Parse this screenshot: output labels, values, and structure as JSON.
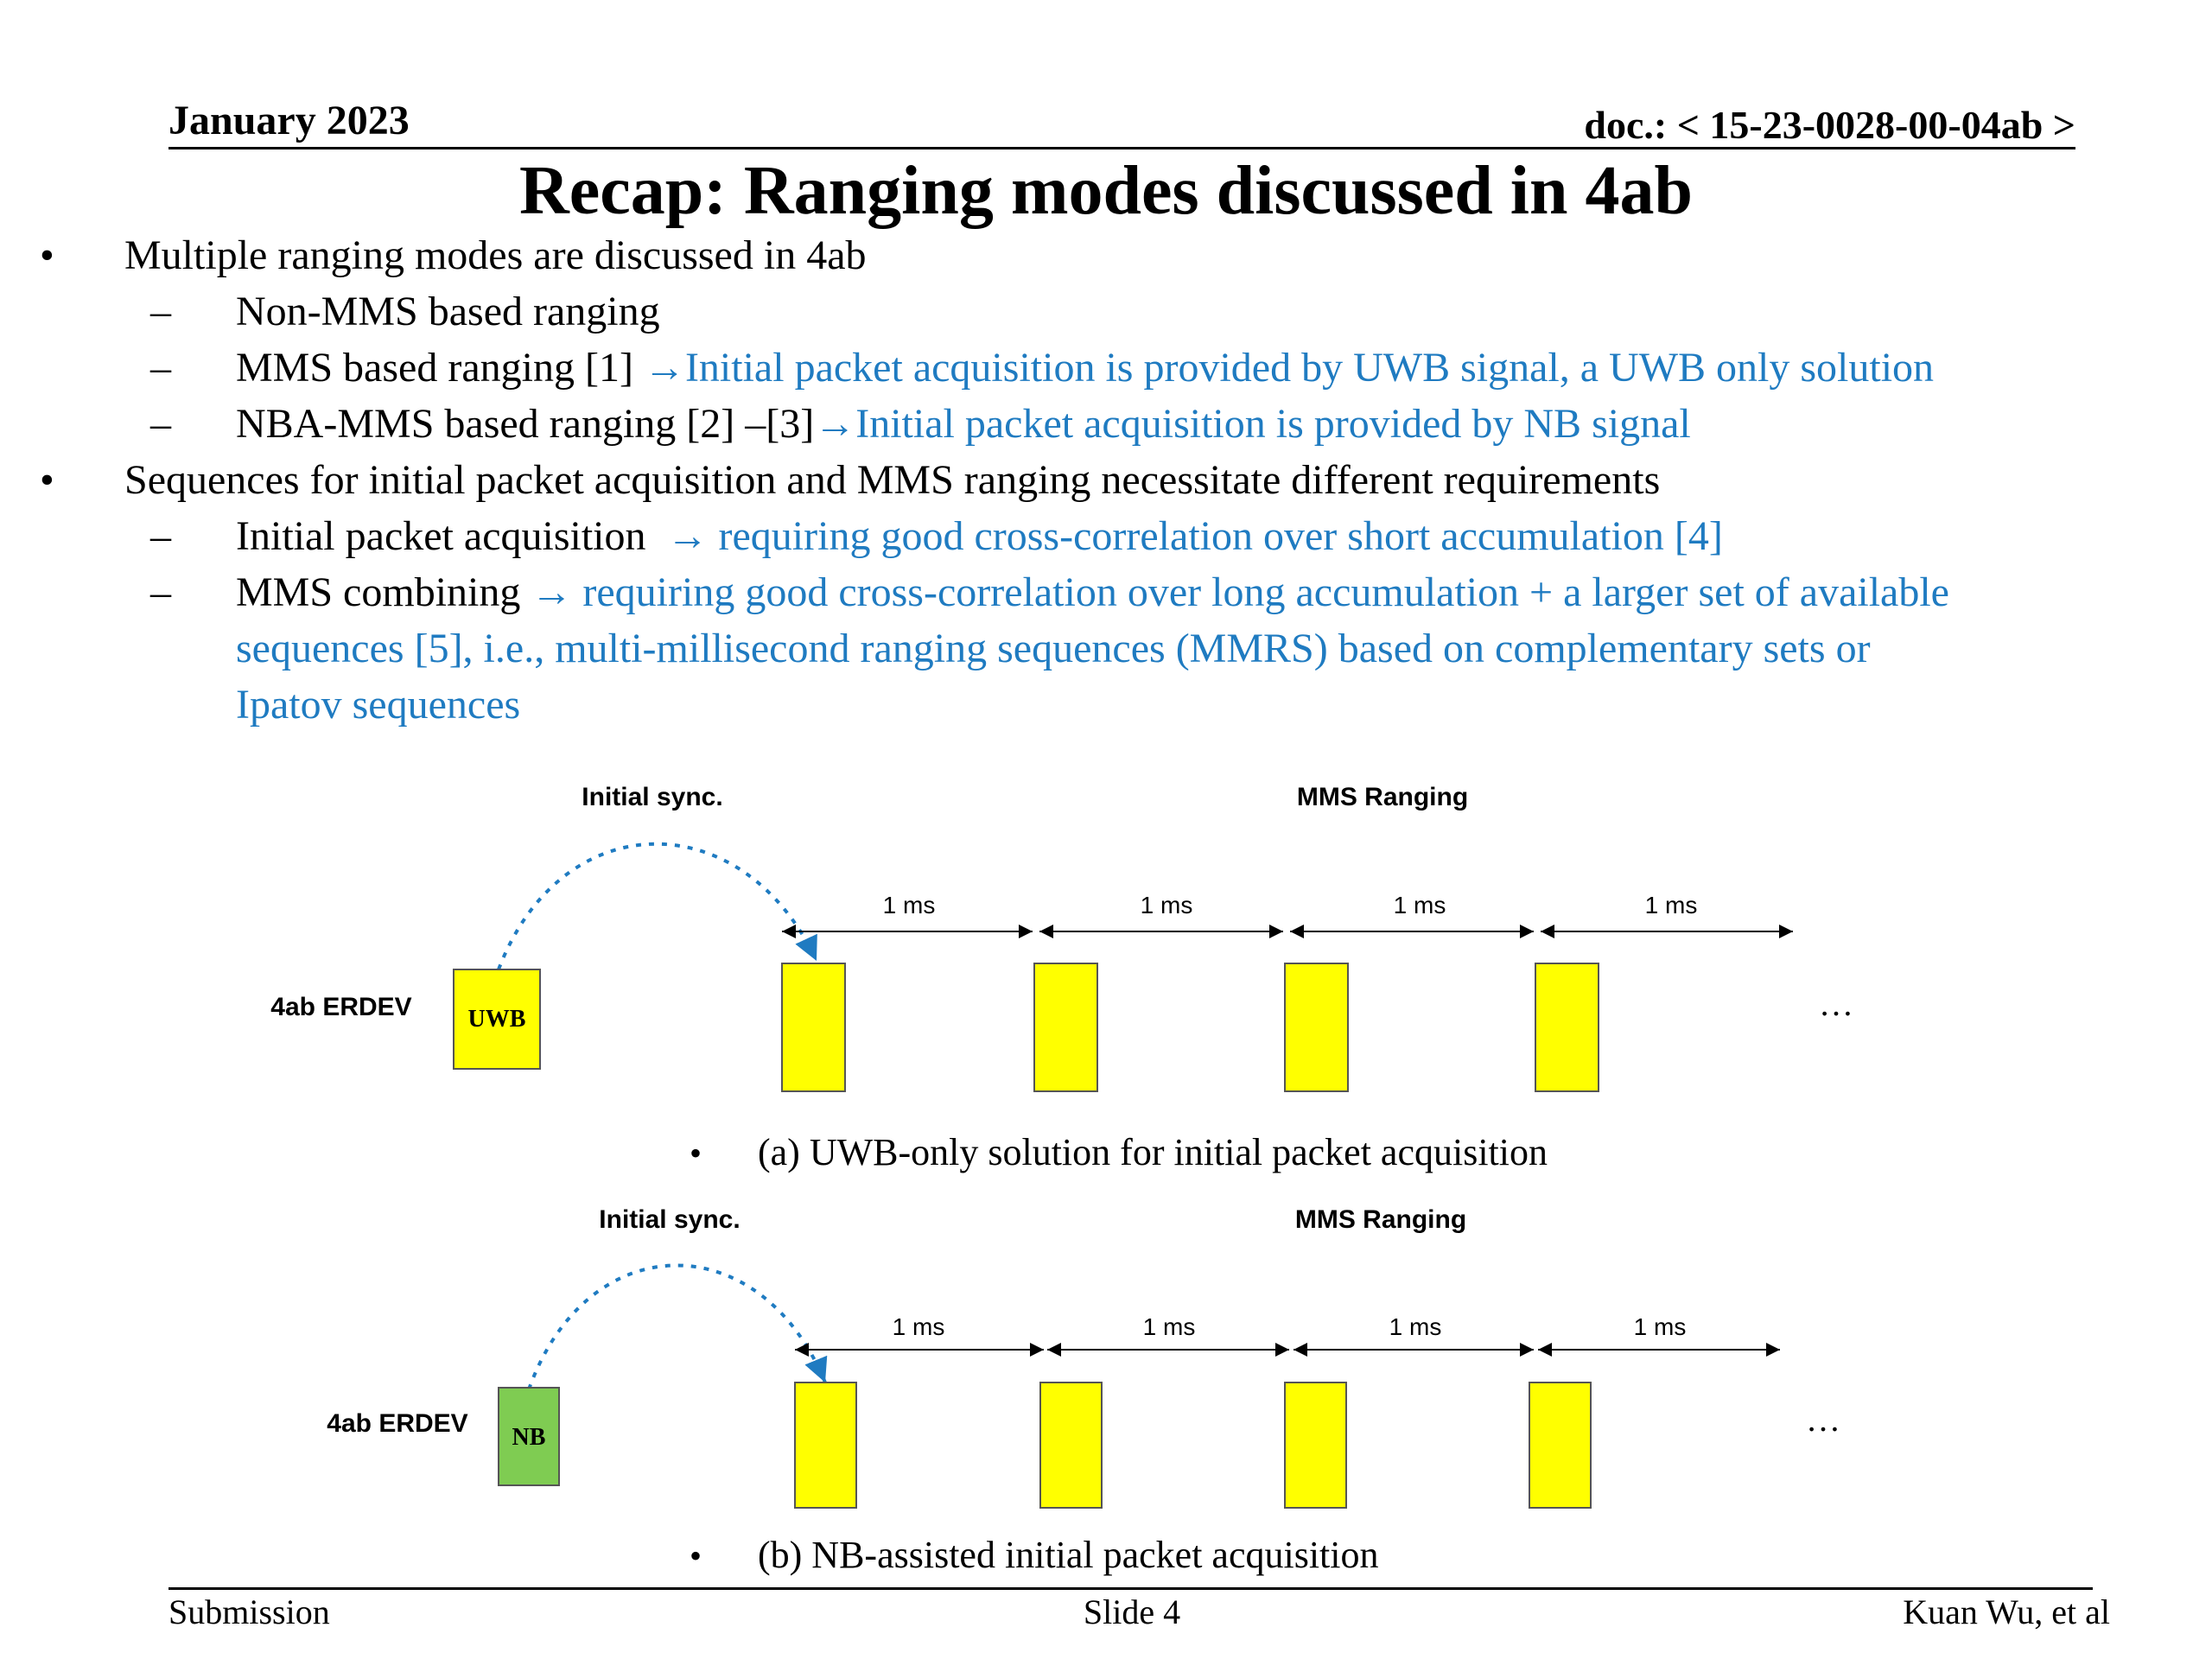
{
  "header": {
    "date": "January 2023",
    "doc": "doc.: < 15-23-0028-00-04ab >"
  },
  "title": "Recap: Ranging modes discussed in 4ab",
  "bullets": {
    "b1": {
      "text": "Multiple ranging modes are discussed in 4ab"
    },
    "b1s1": {
      "text": "Non-MMS based ranging"
    },
    "b1s2": {
      "text": "MMS based ranging [1] ",
      "arrow": "→",
      "blue": "Initial packet acquisition is provided by UWB signal, a UWB only solution"
    },
    "b1s3": {
      "text": "NBA-MMS based ranging [2] –[3]",
      "arrow": "→",
      "blue": "Initial packet acquisition is provided by NB signal"
    },
    "b2": {
      "text": "Sequences for initial packet acquisition and MMS ranging necessitate different requirements"
    },
    "b2s1": {
      "text": "Initial packet acquisition  ",
      "arrow": "→",
      "blue": " requiring good cross-correlation over short accumulation [4]"
    },
    "b2s2": {
      "text": "MMS combining ",
      "arrow": "→",
      "blue1": " requiring good cross-correlation over long accumulation + a larger set of available",
      "blue2": "sequences [5], i.e., multi-millisecond ranging sequences (MMRS) based on complementary sets or",
      "blue3": "Ipatov sequences"
    }
  },
  "diagrams": {
    "a": {
      "initial_sync": "Initial sync.",
      "mms_ranging": "MMS Ranging",
      "device": "4ab ERDEV",
      "first_block": "UWB",
      "intervals": [
        "1 ms",
        "1 ms",
        "1 ms",
        "1 ms"
      ],
      "ellipsis": "…",
      "caption_bullet": "•",
      "caption": "(a) UWB-only solution for initial packet acquisition"
    },
    "b": {
      "initial_sync": "Initial sync.",
      "mms_ranging": "MMS Ranging",
      "device": "4ab ERDEV",
      "first_block": "NB",
      "intervals": [
        "1 ms",
        "1 ms",
        "1 ms",
        "1 ms"
      ],
      "ellipsis": "…",
      "caption_bullet": "•",
      "caption": "(b) NB-assisted initial packet acquisition"
    }
  },
  "colors": {
    "accent_blue": "#1f7bc1",
    "block_yellow": "#ffff00",
    "block_green": "#7fcc52"
  },
  "footer": {
    "left": "Submission",
    "center": "Slide 4",
    "right": "Kuan Wu, et al"
  }
}
